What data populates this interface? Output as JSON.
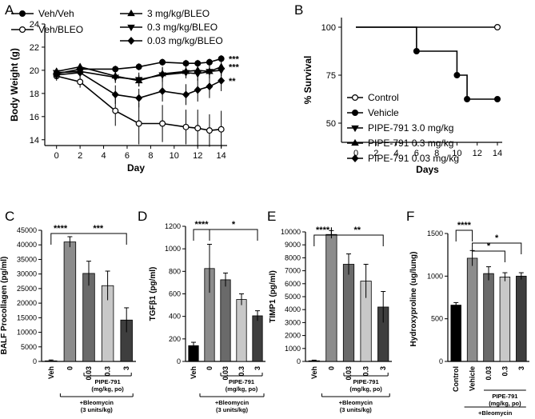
{
  "chart_data": [
    {
      "panel": "A",
      "type": "line",
      "xlabel": "Day",
      "ylabel": "Body Weight (g)",
      "xlim": [
        -1,
        14.5
      ],
      "ylim": [
        13.5,
        24
      ],
      "xticks": [
        0,
        2,
        4,
        6,
        8,
        10,
        12,
        14
      ],
      "yticks": [
        14,
        16,
        18,
        20,
        22,
        24
      ],
      "series": [
        {
          "name": "Veh/Veh",
          "marker": "filled-circle",
          "x": [
            0,
            2,
            5,
            7,
            9,
            11,
            12,
            13,
            14
          ],
          "y": [
            19.7,
            20.1,
            20.1,
            20.3,
            20.7,
            20.6,
            20.6,
            20.7,
            21.0
          ],
          "err": [
            0.3,
            0.3,
            0.3,
            0.3,
            0.3,
            0.3,
            0.3,
            0.3,
            0.3
          ],
          "sig": "***"
        },
        {
          "name": "Veh/BLEO",
          "marker": "open-circle",
          "x": [
            0,
            2,
            5,
            7,
            9,
            11,
            12,
            13,
            14
          ],
          "y": [
            19.5,
            19.0,
            16.5,
            15.4,
            15.4,
            15.1,
            15.0,
            14.8,
            14.9
          ],
          "err": [
            0.4,
            0.5,
            1.3,
            1.8,
            1.6,
            1.5,
            1.6,
            1.4,
            1.6
          ],
          "sig": ""
        },
        {
          "name": "3 mg/kg/BLEO",
          "marker": "triangle-up",
          "x": [
            0,
            2,
            5,
            7,
            9,
            11,
            12,
            13,
            14
          ],
          "y": [
            19.9,
            20.3,
            19.5,
            19.1,
            19.7,
            19.9,
            20.0,
            19.9,
            20.3
          ],
          "err": [
            0.3,
            0.3,
            0.5,
            0.5,
            0.6,
            0.5,
            0.6,
            0.6,
            0.5
          ],
          "sig": "***"
        },
        {
          "name": "0.3 mg/kg/BLEO",
          "marker": "triangle-down",
          "x": [
            0,
            2,
            5,
            7,
            9,
            11,
            12,
            13,
            14
          ],
          "y": [
            19.8,
            19.9,
            19.4,
            19.2,
            19.6,
            19.8,
            19.7,
            19.9,
            20.0
          ],
          "err": [
            0.3,
            0.3,
            0.5,
            0.6,
            0.6,
            0.5,
            0.6,
            0.6,
            0.5
          ],
          "sig": ""
        },
        {
          "name": "0.03 mg/kg/BLEO",
          "marker": "diamond",
          "x": [
            0,
            2,
            5,
            7,
            9,
            11,
            12,
            13,
            14
          ],
          "y": [
            19.6,
            19.8,
            17.9,
            17.6,
            18.2,
            17.9,
            18.3,
            18.6,
            19.1
          ],
          "err": [
            0.3,
            0.4,
            0.8,
            0.8,
            0.9,
            0.9,
            1.0,
            1.0,
            0.9
          ],
          "sig": "**"
        }
      ]
    },
    {
      "panel": "B",
      "type": "line",
      "xlabel": "Days",
      "ylabel": "% Survival",
      "xlim": [
        0,
        14
      ],
      "ylim": [
        40,
        105
      ],
      "xticks": [
        0,
        2,
        4,
        6,
        8,
        10,
        12,
        14
      ],
      "yticks": [
        50,
        75,
        100
      ],
      "series": [
        {
          "name": "Control",
          "marker": "open-circle",
          "x": [
            0,
            14
          ],
          "y": [
            100,
            100
          ]
        },
        {
          "name": "Vehicle",
          "marker": "filled-circle",
          "x": [
            0,
            6,
            10,
            11,
            14
          ],
          "y": [
            100,
            87.5,
            75,
            62.5,
            62.5
          ]
        },
        {
          "name": "PIPE-791  3.0 mg/kg",
          "marker": "triangle-down"
        },
        {
          "name": "PIPE-791  0.3 mg/kg",
          "marker": "triangle-up"
        },
        {
          "name": "PIPE-791 0.03 mg/kg",
          "marker": "diamond"
        }
      ]
    },
    {
      "panel": "C",
      "type": "bar",
      "ylabel": "BALF Procollagen (pg/ml)",
      "ylim": [
        0,
        45000
      ],
      "yticks": [
        0,
        5000,
        10000,
        15000,
        20000,
        25000,
        30000,
        35000,
        40000,
        45000
      ],
      "categories": [
        "Veh",
        "0",
        "0.03",
        "0.3",
        "3"
      ],
      "values": [
        200,
        41000,
        30200,
        26000,
        14200
      ],
      "errors": [
        300,
        1800,
        4200,
        5000,
        4200
      ],
      "colors": [
        "#000000",
        "#8c8c8c",
        "#6a6a6a",
        "#c8c8c8",
        "#3e3e3e"
      ],
      "sig": [
        {
          "from": 0,
          "to": 1,
          "label": "****"
        },
        {
          "from": 1,
          "to": 4,
          "label": "***"
        }
      ],
      "notes": {
        "drug": "PIPE-791",
        "dose": "(mg/kg, po)",
        "bleo1": "+Bleomycin",
        "bleo2": "(3 units/kg)"
      }
    },
    {
      "panel": "D",
      "type": "bar",
      "ylabel": "TGFβ1 (pg/ml)",
      "ylim": [
        0,
        1200
      ],
      "yticks": [
        0,
        200,
        400,
        600,
        800,
        1000,
        1200
      ],
      "categories": [
        "Veh",
        "0",
        "0.03",
        "0.3",
        "3"
      ],
      "values": [
        140,
        825,
        725,
        550,
        405
      ],
      "errors": [
        30,
        215,
        60,
        50,
        45
      ],
      "colors": [
        "#000000",
        "#8c8c8c",
        "#6a6a6a",
        "#c8c8c8",
        "#3e3e3e"
      ],
      "sig": [
        {
          "from": 0,
          "to": 1,
          "label": "****"
        },
        {
          "from": 1,
          "to": 4,
          "label": "*"
        }
      ],
      "notes": {
        "drug": "PIPE-791",
        "dose": "(mg/kg, po)",
        "bleo1": "+Bleomycin",
        "bleo2": "(3 units/kg)"
      }
    },
    {
      "panel": "E",
      "type": "bar",
      "ylabel": "TIMP1 (pg/ml)",
      "ylim": [
        0,
        10000
      ],
      "yticks": [
        0,
        1000,
        2000,
        3000,
        4000,
        5000,
        6000,
        7000,
        8000,
        9000,
        10000
      ],
      "categories": [
        "Veh",
        "0",
        "0.03",
        "0.3",
        "3"
      ],
      "values": [
        50,
        9800,
        7500,
        6200,
        4200
      ],
      "errors": [
        50,
        300,
        800,
        1300,
        1200
      ],
      "colors": [
        "#000000",
        "#8c8c8c",
        "#6a6a6a",
        "#c8c8c8",
        "#3e3e3e"
      ],
      "sig": [
        {
          "from": 0,
          "to": 1,
          "label": "****"
        },
        {
          "from": 1,
          "to": 4,
          "label": "**"
        }
      ],
      "notes": {
        "drug": "PIPE-791",
        "dose": "(mg/kg, po)",
        "bleo1": "+Bleomycin",
        "bleo2": "(3 units/kg)"
      }
    },
    {
      "panel": "F",
      "type": "bar",
      "ylabel": "Hydroxyproline (ug/lung)",
      "ylim": [
        0,
        1500
      ],
      "yticks": [
        0,
        500,
        1000,
        1500
      ],
      "categories": [
        "Control",
        "Vehicle",
        "0.03",
        "0.3",
        "3"
      ],
      "values": [
        660,
        1210,
        1030,
        990,
        1000
      ],
      "errors": [
        30,
        90,
        80,
        50,
        40
      ],
      "colors": [
        "#000000",
        "#8c8c8c",
        "#6a6a6a",
        "#c8c8c8",
        "#3e3e3e"
      ],
      "sig": [
        {
          "from": 0,
          "to": 1,
          "label": "****"
        },
        {
          "from": 1,
          "to": 3,
          "label": "*"
        },
        {
          "from": 1,
          "to": 4,
          "label": "*"
        }
      ],
      "notes": {
        "drug": "PIPE-791",
        "dose": "(mg/kg, po)",
        "bleo1": "+Bleomycin",
        "bleo2": ""
      }
    }
  ]
}
